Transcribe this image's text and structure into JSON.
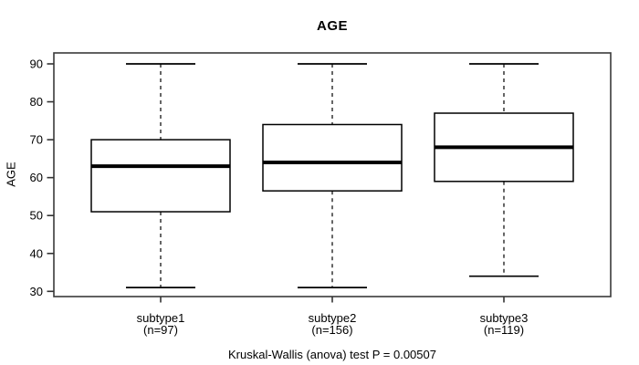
{
  "chart_data": {
    "type": "boxplot",
    "title": "AGE",
    "ylabel": "AGE",
    "xlabel": "",
    "annotation": "Kruskal-Wallis (anova) test P = 0.00507",
    "grid": false,
    "legend": "none",
    "yticks": [
      30,
      40,
      50,
      60,
      70,
      80,
      90
    ],
    "ylim": [
      28.6,
      93.1
    ],
    "whisker_style": "dashed",
    "colors": {
      "line": "#000000",
      "background": "#ffffff"
    },
    "groups": [
      {
        "label": "subtype1",
        "sublabel": "(n=97)",
        "n": 97,
        "whisker_low": 31,
        "q1": 51,
        "median": 63,
        "q3": 70,
        "whisker_high": 90
      },
      {
        "label": "subtype2",
        "sublabel": "(n=156)",
        "n": 156,
        "whisker_low": 31,
        "q1": 56.5,
        "median": 64,
        "q3": 74,
        "whisker_high": 90
      },
      {
        "label": "subtype3",
        "sublabel": "(n=119)",
        "n": 119,
        "whisker_low": 34,
        "q1": 59,
        "median": 68,
        "q3": 77,
        "whisker_high": 90
      }
    ]
  }
}
